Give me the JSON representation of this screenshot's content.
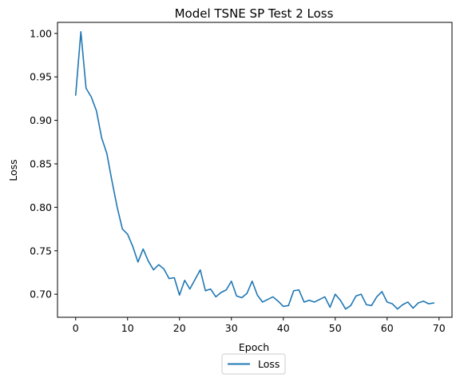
{
  "chart_data": {
    "type": "line",
    "title": "Model TSNE SP Test 2 Loss",
    "xlabel": "Epoch",
    "ylabel": "Loss",
    "xlim": [
      -3.5,
      72.5
    ],
    "ylim": [
      0.6735,
      1.0127
    ],
    "xticks": [
      0,
      10,
      20,
      30,
      40,
      50,
      60,
      70
    ],
    "yticks": [
      0.7,
      0.75,
      0.8,
      0.85,
      0.9,
      0.95,
      1.0
    ],
    "ytick_labels": [
      "0.70",
      "0.75",
      "0.80",
      "0.85",
      "0.90",
      "0.95",
      "1.00"
    ],
    "grid": false,
    "legend_position": "below-center",
    "series": [
      {
        "name": "Loss",
        "color": "#1f77b4",
        "x": [
          0,
          1,
          2,
          3,
          4,
          5,
          6,
          7,
          8,
          9,
          10,
          11,
          12,
          13,
          14,
          15,
          16,
          17,
          18,
          19,
          20,
          21,
          22,
          23,
          24,
          25,
          26,
          27,
          28,
          29,
          30,
          31,
          32,
          33,
          34,
          35,
          36,
          37,
          38,
          39,
          40,
          41,
          42,
          43,
          44,
          45,
          46,
          47,
          48,
          49,
          50,
          51,
          52,
          53,
          54,
          55,
          56,
          57,
          58,
          59,
          60,
          61,
          62,
          63,
          64,
          65,
          66,
          67,
          68,
          69
        ],
        "values": [
          0.929,
          1.002,
          0.937,
          0.927,
          0.911,
          0.88,
          0.862,
          0.83,
          0.8,
          0.775,
          0.769,
          0.755,
          0.737,
          0.752,
          0.738,
          0.728,
          0.734,
          0.729,
          0.718,
          0.719,
          0.699,
          0.716,
          0.706,
          0.717,
          0.728,
          0.704,
          0.706,
          0.697,
          0.702,
          0.705,
          0.715,
          0.698,
          0.696,
          0.701,
          0.715,
          0.699,
          0.691,
          0.694,
          0.697,
          0.692,
          0.686,
          0.687,
          0.704,
          0.705,
          0.691,
          0.693,
          0.691,
          0.694,
          0.697,
          0.685,
          0.7,
          0.693,
          0.683,
          0.687,
          0.698,
          0.7,
          0.688,
          0.687,
          0.697,
          0.703,
          0.691,
          0.689,
          0.683,
          0.688,
          0.691,
          0.684,
          0.69,
          0.692,
          0.689,
          0.69
        ]
      }
    ]
  }
}
